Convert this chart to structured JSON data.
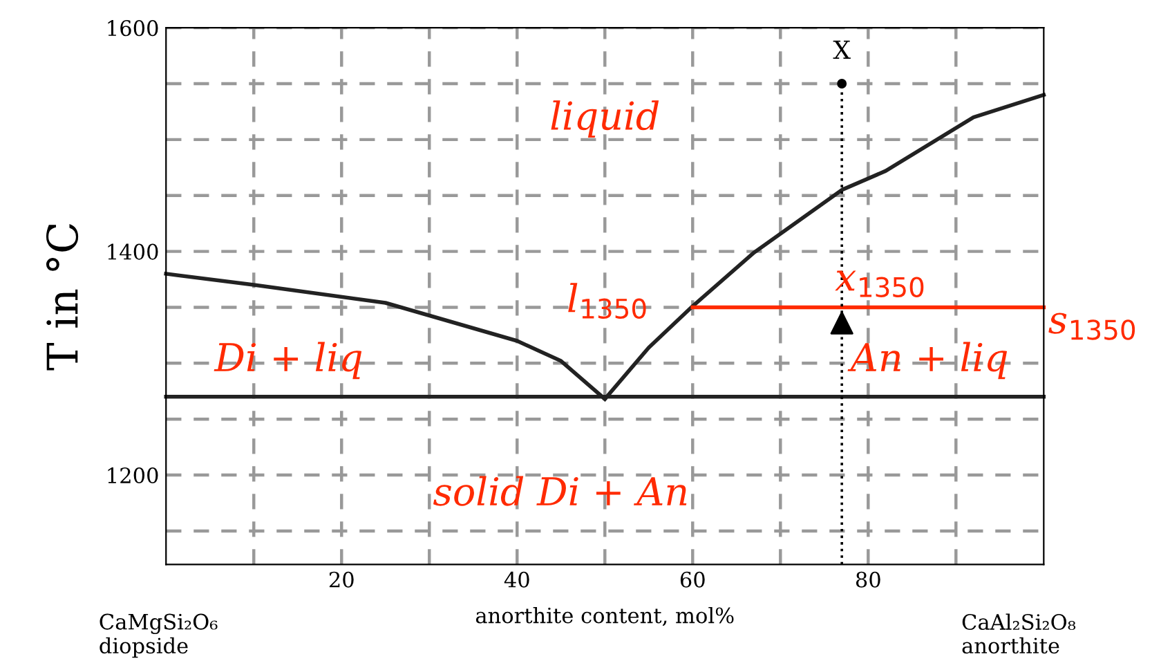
{
  "chart_data": {
    "type": "line",
    "xlabel": "anorthite content, mol%",
    "ylabel": "T in °C",
    "xlim": [
      0,
      100
    ],
    "ylim": [
      1120,
      1600
    ],
    "xticks": [
      {
        "value": 10,
        "label": null
      },
      20,
      {
        "value": 30,
        "label": null
      },
      40,
      {
        "value": 50,
        "label": null
      },
      60,
      {
        "value": 70,
        "label": null
      },
      80,
      {
        "value": 90,
        "label": null
      }
    ],
    "yticks": [
      {
        "value": 1150,
        "label": null
      },
      1200,
      {
        "value": 1250,
        "label": null
      },
      {
        "value": 1300,
        "label": null
      },
      {
        "value": 1350,
        "label": null
      },
      1400,
      {
        "value": 1450,
        "label": null
      },
      {
        "value": 1500,
        "label": null
      },
      {
        "value": 1550,
        "label": null
      },
      1600
    ],
    "grid": true,
    "series": [
      {
        "color": "#222222",
        "x": [
          0,
          10,
          25,
          40,
          45,
          50
        ],
        "values": [
          1380,
          1370,
          1354,
          1320,
          1302,
          1268
        ]
      },
      {
        "color": "#222222",
        "x": [
          50,
          55,
          60,
          67,
          77,
          82,
          92,
          100
        ],
        "values": [
          1268,
          1314,
          1351,
          1399,
          1455,
          1472,
          1520,
          1540
        ]
      },
      {
        "color": "#222222",
        "x": [
          0,
          100
        ],
        "values": [
          1270,
          1270
        ]
      },
      {
        "color": "#ff2a00",
        "x": [
          60,
          100
        ],
        "values": [
          1350,
          1350
        ]
      },
      {
        "color": "#000000",
        "x": [
          77,
          77
        ],
        "values": [
          1120,
          1550
        ],
        "line_style": "dotted"
      },
      {
        "type": "scatter",
        "color": "#000000",
        "x": [
          77
        ],
        "values": [
          1550
        ],
        "marker": "circle"
      },
      {
        "type": "scatter",
        "color": "#000000",
        "x": [
          77
        ],
        "values": [
          1336
        ],
        "marker": "triangle"
      }
    ],
    "annotations": [
      "CaMgSi₂O₆\ndiopside",
      "CaAl₂Si₂O₈\nanorthite",
      "X",
      "liquid",
      "Di + liq",
      "An + liq",
      "solid Di + An",
      "l$_{1350}$",
      "x$_{1350}$",
      "s$_{1350}$"
    ]
  }
}
